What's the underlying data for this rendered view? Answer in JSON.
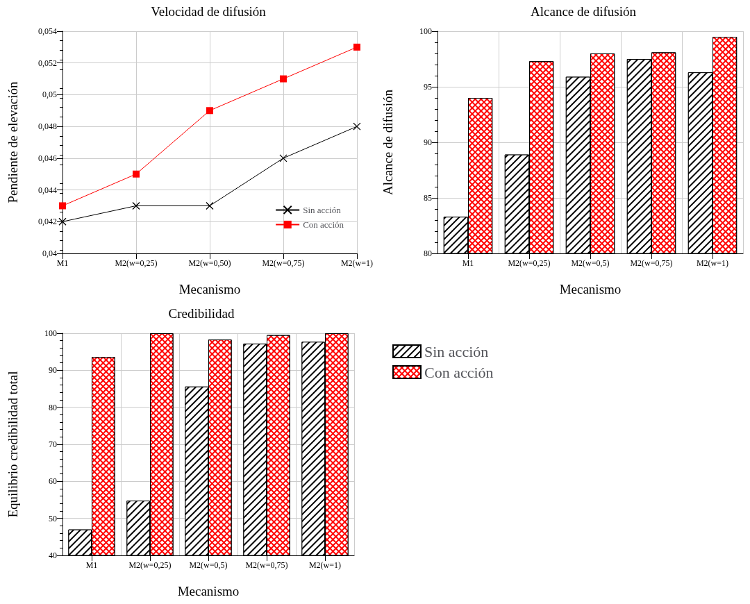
{
  "chart_data": [
    {
      "type": "line",
      "title": "Velocidad de difusión",
      "xlabel": "Mecanismo",
      "ylabel": "Pendiente de elevación",
      "categories": [
        "M1",
        "M2(w=0,25)",
        "M2(w=0,50)",
        "M2(w=0,75)",
        "M2(w=1)"
      ],
      "series": [
        {
          "name": "Sin acción",
          "color": "#000000",
          "marker": "cross",
          "values": [
            0.042,
            0.043,
            0.043,
            0.046,
            0.048
          ]
        },
        {
          "name": "Con acción",
          "color": "#ff0000",
          "marker": "square",
          "values": [
            0.043,
            0.045,
            0.049,
            0.051,
            0.053
          ]
        }
      ],
      "ylim": [
        0.04,
        0.054
      ],
      "yticks": [
        {
          "value": 0.04,
          "label": "0,04"
        },
        {
          "value": 0.042,
          "label": "0,042"
        },
        {
          "value": 0.044,
          "label": "0,044"
        },
        {
          "value": 0.046,
          "label": "0,046"
        },
        {
          "value": 0.048,
          "label": "0,048"
        },
        {
          "value": 0.05,
          "label": "0,05"
        },
        {
          "value": 0.052,
          "label": "0,052"
        },
        {
          "value": 0.054,
          "label": "0,054"
        }
      ],
      "grid": true,
      "legend": "bottom right"
    },
    {
      "type": "bar",
      "title": "Alcance de difusión",
      "xlabel": "Mecanismo",
      "ylabel": "Alcance de difusión",
      "categories": [
        "M1",
        "M2(w=0,25)",
        "M2(w=0,5)",
        "M2(w=0,75)",
        "M2(w=1)"
      ],
      "series": [
        {
          "color": "#000000",
          "values": [
            83.3,
            88.9,
            95.9,
            97.5,
            96.3
          ]
        },
        {
          "color": "#ff0000",
          "values": [
            94.0,
            97.3,
            98.0,
            98.1,
            99.5
          ]
        }
      ],
      "ylim": [
        80,
        100
      ],
      "yticks": [
        80,
        85,
        90,
        95,
        100
      ],
      "grid": true,
      "legend": false
    },
    {
      "type": "bar",
      "title": "Credibilidad",
      "xlabel": "Mecanismo",
      "ylabel": "Equilibrio credibilidad total",
      "categories": [
        "M1",
        "M2(w=0,25)",
        "M2(w=0,5)",
        "M2(w=0,75)",
        "M2(w=1)"
      ],
      "series": [
        {
          "name": "Sin acción",
          "color": "#000000",
          "values": [
            47.0,
            54.8,
            85.6,
            97.2,
            97.7
          ]
        },
        {
          "name": "Con acción",
          "color": "#ff0000",
          "values": [
            93.6,
            100,
            98.3,
            99.5,
            100
          ]
        }
      ],
      "ylim": [
        40,
        100
      ],
      "yticks": [
        40,
        50,
        60,
        70,
        80,
        90,
        100
      ],
      "grid": true,
      "legend": "right"
    }
  ]
}
